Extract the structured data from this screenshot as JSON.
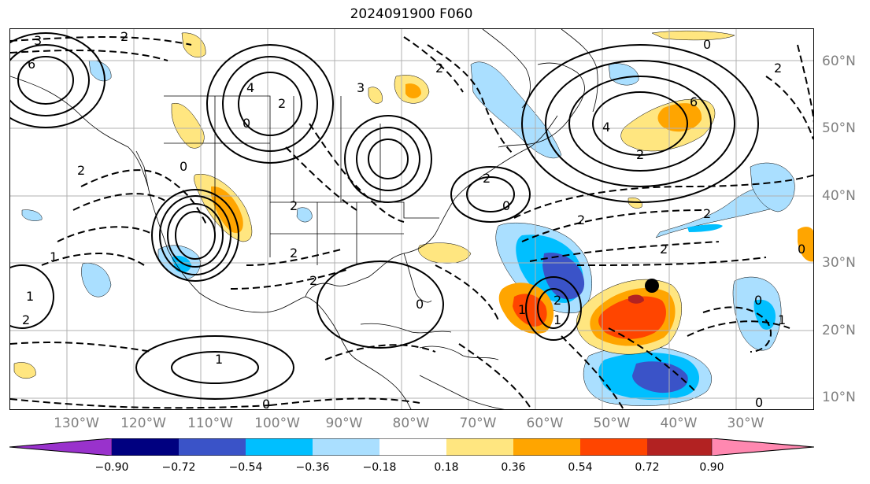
{
  "title": "2024091900 F060",
  "lat_labels": [
    "60°N",
    "50°N",
    "40°N",
    "30°N",
    "20°N",
    "10°N"
  ],
  "lon_labels": [
    "130°W",
    "120°W",
    "110°W",
    "100°W",
    "90°W",
    "80°W",
    "70°W",
    "60°W",
    "50°W",
    "40°W",
    "30°W"
  ],
  "contour_labels": [
    "3",
    "2",
    "6",
    "4",
    "2",
    "0",
    "2",
    "1",
    "2",
    "3",
    "2",
    "2",
    "0",
    "1",
    "2",
    "1",
    "2",
    "6",
    "4",
    "2",
    "2",
    "2",
    "0",
    "2",
    "2",
    "1",
    "0",
    "0",
    "1",
    "2",
    "0",
    "0",
    "2",
    "0",
    "1",
    "0"
  ],
  "colorbar": {
    "tick_labels": [
      "−0.90",
      "−0.72",
      "−0.54",
      "−0.36",
      "−0.18",
      "0.18",
      "0.36",
      "0.54",
      "0.72",
      "0.90"
    ],
    "colors": [
      "#9932cc",
      "#000080",
      "#3a53c8",
      "#00bfff",
      "#aadfff",
      "#ffffff",
      "#ffe680",
      "#ffa500",
      "#ff4500",
      "#b22222",
      "#ff88b0"
    ]
  },
  "marker_color": "#000000"
}
